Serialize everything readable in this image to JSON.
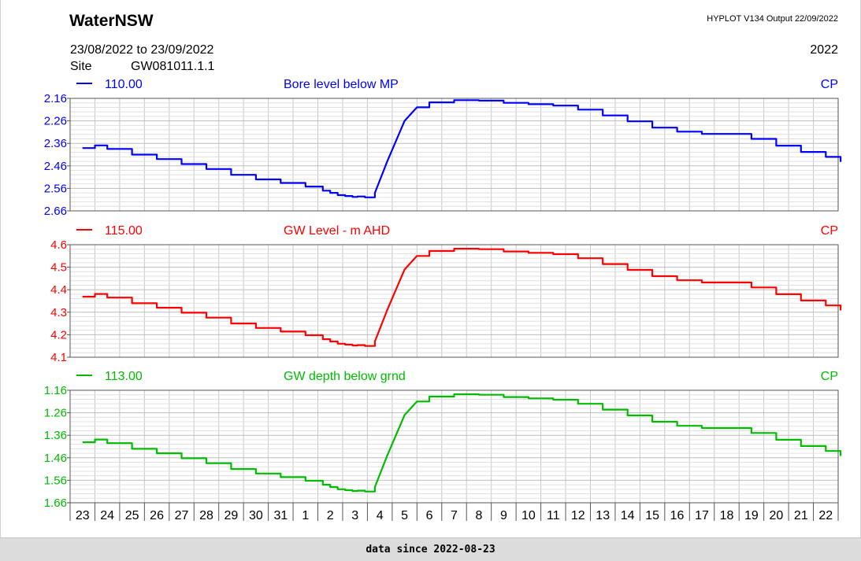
{
  "header": {
    "title": "WaterNSW",
    "program": "HYPLOT V134  Output 22/09/2022",
    "period": "23/08/2022  to  23/09/2022",
    "year": "2022",
    "site_label": "Site",
    "site_value": "GW081011.1.1"
  },
  "footer": {
    "text": "data since 2022-08-23"
  },
  "chart_data": [
    {
      "type": "line",
      "code": "110.00",
      "title": "Bore level below MP",
      "quality": "CP",
      "color": "#0000ff",
      "ylim": [
        2.66,
        2.16
      ],
      "yticks": [
        "2.16",
        "2.26",
        "2.36",
        "2.46",
        "2.56",
        "2.66"
      ],
      "x_labels": [
        "23",
        "24",
        "25",
        "26",
        "27",
        "28",
        "29",
        "30",
        "31",
        "1",
        "2",
        "3",
        "4",
        "5",
        "6",
        "7",
        "8",
        "9",
        "10",
        "11",
        "12",
        "13",
        "14",
        "15",
        "16",
        "17",
        "18",
        "19",
        "20",
        "21",
        "22"
      ],
      "x": [
        0,
        0.5,
        1,
        2,
        3,
        4,
        5,
        6,
        7,
        8,
        9,
        9.7,
        10,
        10.3,
        10.6,
        10.9,
        11.1,
        11.4,
        11.8,
        12.3,
        13,
        13.5,
        14,
        15,
        16,
        17,
        18,
        19,
        20,
        21,
        22,
        23,
        24,
        25,
        26,
        27,
        28,
        29,
        30,
        30.6
      ],
      "values": [
        2.381,
        2.369,
        2.385,
        2.41,
        2.43,
        2.452,
        2.474,
        2.5,
        2.52,
        2.536,
        2.552,
        2.57,
        2.58,
        2.59,
        2.594,
        2.598,
        2.596,
        2.6,
        2.58,
        2.44,
        2.26,
        2.2,
        2.178,
        2.168,
        2.17,
        2.18,
        2.186,
        2.192,
        2.21,
        2.236,
        2.262,
        2.29,
        2.308,
        2.318,
        2.318,
        2.34,
        2.37,
        2.398,
        2.42,
        2.442
      ],
      "grid": true
    },
    {
      "type": "line",
      "code": "115.00",
      "title": "GW Level - m AHD",
      "quality": "CP",
      "color": "#ff0000",
      "ylim": [
        4.1,
        4.6
      ],
      "yticks": [
        "4.6",
        "4.5",
        "4.4",
        "4.3",
        "4.2",
        "4.1"
      ],
      "x_labels": [
        "23",
        "24",
        "25",
        "26",
        "27",
        "28",
        "29",
        "30",
        "31",
        "1",
        "2",
        "3",
        "4",
        "5",
        "6",
        "7",
        "8",
        "9",
        "10",
        "11",
        "12",
        "13",
        "14",
        "15",
        "16",
        "17",
        "18",
        "19",
        "20",
        "21",
        "22"
      ],
      "x": [
        0,
        0.5,
        1,
        2,
        3,
        4,
        5,
        6,
        7,
        8,
        9,
        9.7,
        10,
        10.3,
        10.6,
        10.9,
        11.1,
        11.4,
        11.8,
        12.3,
        13,
        13.5,
        14,
        15,
        16,
        17,
        18,
        19,
        20,
        21,
        22,
        23,
        24,
        25,
        26,
        27,
        28,
        29,
        30,
        30.6
      ],
      "values": [
        4.369,
        4.381,
        4.365,
        4.34,
        4.32,
        4.298,
        4.276,
        4.25,
        4.23,
        4.214,
        4.198,
        4.18,
        4.17,
        4.16,
        4.156,
        4.152,
        4.154,
        4.15,
        4.17,
        4.31,
        4.49,
        4.55,
        4.572,
        4.582,
        4.58,
        4.57,
        4.564,
        4.558,
        4.54,
        4.514,
        4.488,
        4.46,
        4.442,
        4.432,
        4.432,
        4.41,
        4.38,
        4.352,
        4.33,
        4.308
      ],
      "grid": true
    },
    {
      "type": "line",
      "code": "113.00",
      "title": "GW depth below grnd",
      "quality": "CP",
      "color": "#00bb00",
      "ylim": [
        1.66,
        1.16
      ],
      "yticks": [
        "1.16",
        "1.26",
        "1.36",
        "1.46",
        "1.56",
        "1.66"
      ],
      "x_labels": [
        "23",
        "24",
        "25",
        "26",
        "27",
        "28",
        "29",
        "30",
        "31",
        "1",
        "2",
        "3",
        "4",
        "5",
        "6",
        "7",
        "8",
        "9",
        "10",
        "11",
        "12",
        "13",
        "14",
        "15",
        "16",
        "17",
        "18",
        "19",
        "20",
        "21",
        "22"
      ],
      "x": [
        0,
        0.5,
        1,
        2,
        3,
        4,
        5,
        6,
        7,
        8,
        9,
        9.7,
        10,
        10.3,
        10.6,
        10.9,
        11.1,
        11.4,
        11.8,
        12.3,
        13,
        13.5,
        14,
        15,
        16,
        17,
        18,
        19,
        20,
        21,
        22,
        23,
        24,
        25,
        26,
        27,
        28,
        29,
        30,
        30.6
      ],
      "values": [
        1.391,
        1.379,
        1.395,
        1.42,
        1.44,
        1.462,
        1.484,
        1.51,
        1.53,
        1.546,
        1.562,
        1.58,
        1.59,
        1.6,
        1.604,
        1.608,
        1.606,
        1.61,
        1.59,
        1.45,
        1.27,
        1.21,
        1.188,
        1.178,
        1.18,
        1.19,
        1.196,
        1.202,
        1.22,
        1.246,
        1.272,
        1.3,
        1.318,
        1.328,
        1.328,
        1.35,
        1.38,
        1.408,
        1.43,
        1.452
      ],
      "grid": true
    }
  ]
}
